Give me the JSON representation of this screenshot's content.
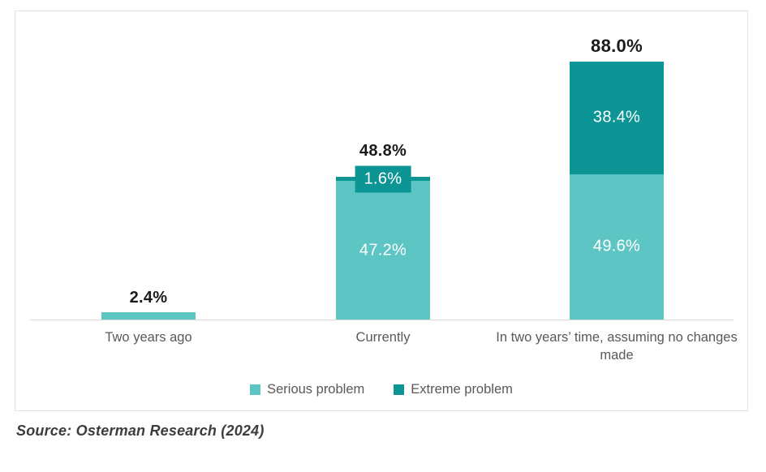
{
  "chart_data": {
    "type": "bar",
    "stacked": true,
    "categories": [
      "Two years ago",
      "Currently",
      "In two years’ time, assuming no changes made"
    ],
    "series": [
      {
        "name": "Serious problem",
        "color": "#5dc6c5",
        "values": [
          2.4,
          47.2,
          49.6
        ]
      },
      {
        "name": "Extreme problem",
        "color": "#0d9596",
        "values": [
          0,
          1.6,
          38.4
        ]
      }
    ],
    "segment_labels": [
      [
        "",
        "47.2%",
        "49.6%"
      ],
      [
        "",
        "1.6%",
        "38.4%"
      ]
    ],
    "totals": [
      "2.4%",
      "48.8%",
      "88.0%"
    ],
    "title": "",
    "xlabel": "",
    "ylabel": "",
    "ylim": [
      0,
      100
    ],
    "grid": false,
    "legend_position": "bottom"
  },
  "legend": {
    "items": [
      {
        "label": "Serious problem",
        "color": "#5dc6c5"
      },
      {
        "label": "Extreme problem",
        "color": "#0d9596"
      }
    ]
  },
  "source": {
    "text": "Source: Osterman Research (2024)"
  },
  "colors": {
    "series_light": "#5dc6c5",
    "series_dark": "#0d9596",
    "axis_line": "#d9d9d9",
    "chart_border": "#e0e0e0",
    "total_label_text": "#1a1a1a",
    "axis_text": "#595959",
    "source_text": "#3d3d3d",
    "segment_label_text": "#ffffff"
  }
}
